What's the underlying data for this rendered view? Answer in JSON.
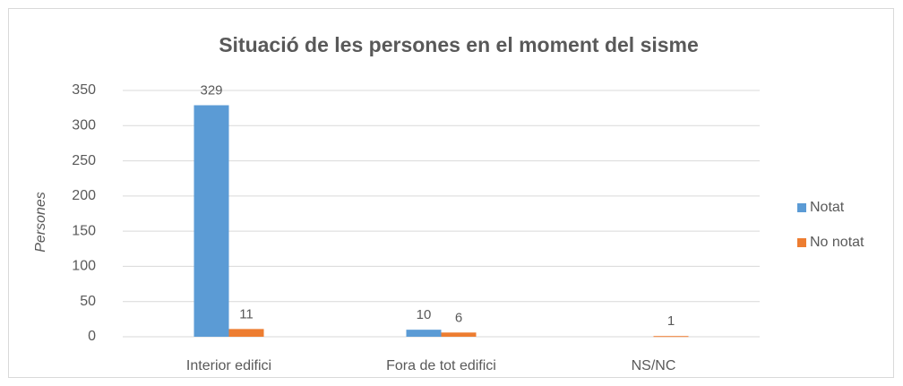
{
  "chart_data": {
    "type": "bar",
    "title": "Situació de les persones en el moment del sisme",
    "y_label": "Persones",
    "categories": [
      "Interior edifici",
      "Fora de tot edifici",
      "NS/NC"
    ],
    "series": [
      {
        "name": "Notat",
        "color": "#5b9bd5",
        "values": [
          329,
          10,
          null
        ]
      },
      {
        "name": "No notat",
        "color": "#ed7d31",
        "values": [
          11,
          6,
          1
        ]
      }
    ],
    "ylim": [
      0,
      350
    ],
    "yticks": [
      0,
      50,
      100,
      150,
      200,
      250,
      300,
      350
    ],
    "grid": true,
    "legend": "right",
    "data_labels": true
  }
}
